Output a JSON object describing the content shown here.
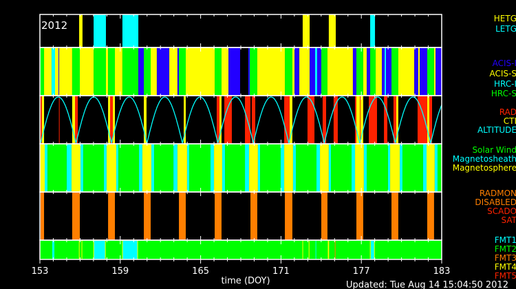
{
  "chart_data": {
    "type": "timeline",
    "title": "2012",
    "xlabel": "time (DOY)",
    "xlim": [
      153,
      183
    ],
    "xticks": [
      "153",
      "159",
      "165",
      "171",
      "177",
      "183"
    ],
    "minor_tick_step_days": 1,
    "grid": false,
    "updated": "Updated: Tue Aug 14 15:04:50 2012",
    "colors": {
      "yellow": "#ffff00",
      "cyan": "#00ffff",
      "green": "#00ff00",
      "blue": "#2200ff",
      "red": "#ff2200",
      "orange": "#ff7f00",
      "white": "#ffffff"
    },
    "panels": [
      {
        "id": "grating",
        "legend": [
          {
            "key": "HETG",
            "label": "HETG",
            "color": "#ffff00"
          },
          {
            "key": "LETG",
            "label": "LETG",
            "color": "#00ffff"
          }
        ],
        "segments": [
          [
            155.93,
            156.18,
            "HETG"
          ],
          [
            157.01,
            157.93,
            "LETG"
          ],
          [
            159.16,
            160.35,
            "LETG"
          ],
          [
            172.62,
            173.14,
            "HETG"
          ],
          [
            174.57,
            175.09,
            "HETG"
          ],
          [
            177.66,
            178.02,
            "LETG"
          ]
        ]
      },
      {
        "id": "instrument",
        "legend": [
          {
            "key": "I",
            "label": "ACIS-I",
            "color": "#2200ff"
          },
          {
            "key": "S",
            "label": "ACIS-S",
            "color": "#ffff00"
          },
          {
            "key": "HI",
            "label": "HRC-I",
            "color": "#00ffff"
          },
          {
            "key": "HS",
            "label": "HRC-S",
            "color": "#00ff00"
          }
        ],
        "segments": [
          [
            153.0,
            153.31,
            "HS"
          ],
          [
            153.31,
            153.87,
            "S"
          ],
          [
            153.87,
            154.13,
            "HI"
          ],
          [
            154.13,
            154.39,
            "S"
          ],
          [
            154.39,
            154.44,
            "I"
          ],
          [
            154.44,
            155.41,
            "S"
          ],
          [
            155.41,
            155.98,
            "HS"
          ],
          [
            155.98,
            157.01,
            "S"
          ],
          [
            157.01,
            157.93,
            "HS"
          ],
          [
            157.93,
            158.09,
            "S"
          ],
          [
            158.09,
            158.6,
            "HS"
          ],
          [
            158.6,
            159.16,
            "S"
          ],
          [
            159.16,
            160.35,
            "HS"
          ],
          [
            160.35,
            160.76,
            "I"
          ],
          [
            160.76,
            161.27,
            "HS"
          ],
          [
            161.27,
            161.73,
            "S"
          ],
          [
            161.73,
            162.66,
            "I"
          ],
          [
            162.66,
            163.27,
            "S"
          ],
          [
            163.27,
            163.38,
            "I"
          ],
          [
            163.38,
            163.89,
            "HS"
          ],
          [
            163.89,
            166.05,
            "S"
          ],
          [
            166.05,
            166.56,
            "HS"
          ],
          [
            166.56,
            167.08,
            "S"
          ],
          [
            167.08,
            167.95,
            "I"
          ],
          [
            168.56,
            168.67,
            "I"
          ],
          [
            168.67,
            169.23,
            "HS"
          ],
          [
            169.23,
            171.29,
            "S"
          ],
          [
            171.29,
            171.85,
            "HS"
          ],
          [
            171.85,
            172.01,
            "S"
          ],
          [
            172.01,
            172.37,
            "I"
          ],
          [
            172.37,
            173.14,
            "S"
          ],
          [
            173.14,
            173.55,
            "I"
          ],
          [
            173.55,
            173.7,
            "HI"
          ],
          [
            173.7,
            174.01,
            "I"
          ],
          [
            174.01,
            174.47,
            "HS"
          ],
          [
            174.47,
            176.37,
            "S"
          ],
          [
            176.37,
            176.63,
            "I"
          ],
          [
            176.63,
            177.14,
            "HS"
          ],
          [
            177.14,
            177.4,
            "S"
          ],
          [
            177.4,
            177.66,
            "I"
          ],
          [
            177.66,
            178.07,
            "HS"
          ],
          [
            178.07,
            178.53,
            "S"
          ],
          [
            178.53,
            178.74,
            "I"
          ],
          [
            178.74,
            178.84,
            "HI"
          ],
          [
            178.84,
            179.25,
            "I"
          ],
          [
            179.25,
            179.76,
            "HS"
          ],
          [
            179.76,
            180.95,
            "S"
          ],
          [
            180.95,
            181.25,
            "I"
          ],
          [
            181.25,
            181.36,
            "S"
          ],
          [
            181.36,
            181.92,
            "I"
          ],
          [
            181.92,
            182.43,
            "HS"
          ],
          [
            182.43,
            182.54,
            "S"
          ],
          [
            182.54,
            183.0,
            "I"
          ]
        ]
      },
      {
        "id": "radiation",
        "legend": [
          {
            "key": "RAD",
            "label": "RAD",
            "color": "#ff2200"
          },
          {
            "key": "CTI",
            "label": "CTI",
            "color": "#ffff00"
          },
          {
            "key": "ALT",
            "label": "ALTITUDE",
            "color": "#00ffff"
          }
        ],
        "segments": [
          [
            153.0,
            153.15,
            "RAD"
          ],
          [
            153.15,
            153.31,
            "CTI"
          ],
          [
            154.42,
            154.47,
            "RAD"
          ],
          [
            155.41,
            155.62,
            "CTI"
          ],
          [
            155.62,
            155.83,
            "RAD"
          ],
          [
            158.09,
            158.24,
            "CTI"
          ],
          [
            158.24,
            158.45,
            "RAD"
          ],
          [
            158.45,
            158.6,
            "CTI"
          ],
          [
            160.76,
            160.96,
            "CTI"
          ],
          [
            163.74,
            163.89,
            "CTI"
          ],
          [
            166.2,
            166.41,
            "RAD"
          ],
          [
            166.41,
            166.56,
            "CTI"
          ],
          [
            166.77,
            167.33,
            "RAD"
          ],
          [
            168.31,
            168.72,
            "RAD"
          ],
          [
            168.82,
            169.08,
            "RAD"
          ],
          [
            171.24,
            171.65,
            "RAD"
          ],
          [
            171.65,
            171.85,
            "CTI"
          ],
          [
            172.98,
            173.5,
            "RAD"
          ],
          [
            174.11,
            174.37,
            "RAD"
          ],
          [
            174.93,
            175.24,
            "RAD"
          ],
          [
            176.53,
            176.63,
            "RAD"
          ],
          [
            176.63,
            176.89,
            "CTI"
          ],
          [
            176.89,
            176.94,
            "RAD"
          ],
          [
            176.94,
            177.14,
            "CTI"
          ],
          [
            177.56,
            178.17,
            "RAD"
          ],
          [
            178.69,
            178.94,
            "RAD"
          ],
          [
            179.4,
            179.61,
            "RAD"
          ],
          [
            179.61,
            179.76,
            "CTI"
          ],
          [
            181.2,
            181.92,
            "RAD"
          ],
          [
            181.92,
            182.08,
            "CTI"
          ],
          [
            182.08,
            182.28,
            "RAD"
          ]
        ],
        "altitude": {
          "first_perigee_doy": 153.05,
          "period_days": 2.648
        }
      },
      {
        "id": "region",
        "legend": [
          {
            "key": "SW",
            "label": "Solar Wind",
            "color": "#00ff00"
          },
          {
            "key": "MS",
            "label": "Magnetosheath",
            "color": "#00ffff"
          },
          {
            "key": "MP",
            "label": "Magnetosphere",
            "color": "#ffff00"
          }
        ],
        "segments": [
          [
            153.0,
            153.36,
            "MP"
          ],
          [
            153.36,
            153.57,
            "MS"
          ],
          [
            153.57,
            155.0,
            "SW"
          ],
          [
            155.0,
            155.36,
            "MS"
          ],
          [
            155.36,
            156.03,
            "MP"
          ],
          [
            156.03,
            156.24,
            "MS"
          ],
          [
            156.24,
            157.78,
            "SW"
          ],
          [
            157.78,
            157.98,
            "MS"
          ],
          [
            157.98,
            158.7,
            "MP"
          ],
          [
            158.7,
            158.86,
            "MS"
          ],
          [
            158.86,
            160.4,
            "SW"
          ],
          [
            160.4,
            160.65,
            "MS"
          ],
          [
            160.65,
            161.32,
            "MP"
          ],
          [
            161.32,
            161.53,
            "MS"
          ],
          [
            161.53,
            162.97,
            "SW"
          ],
          [
            162.97,
            163.27,
            "MS"
          ],
          [
            163.27,
            163.99,
            "MP"
          ],
          [
            163.99,
            164.15,
            "MS"
          ],
          [
            164.15,
            165.74,
            "SW"
          ],
          [
            165.74,
            166.0,
            "MS"
          ],
          [
            166.0,
            166.61,
            "MP"
          ],
          [
            166.61,
            166.82,
            "MS"
          ],
          [
            166.82,
            168.31,
            "SW"
          ],
          [
            168.31,
            168.62,
            "MS"
          ],
          [
            168.62,
            169.28,
            "MP"
          ],
          [
            169.28,
            169.44,
            "MS"
          ],
          [
            169.44,
            170.98,
            "SW"
          ],
          [
            170.98,
            171.24,
            "MS"
          ],
          [
            171.24,
            171.9,
            "MP"
          ],
          [
            171.9,
            172.11,
            "MS"
          ],
          [
            172.11,
            173.65,
            "SW"
          ],
          [
            173.65,
            173.91,
            "MS"
          ],
          [
            173.91,
            174.57,
            "MP"
          ],
          [
            174.57,
            174.73,
            "MS"
          ],
          [
            174.73,
            176.27,
            "SW"
          ],
          [
            176.27,
            176.53,
            "MS"
          ],
          [
            176.53,
            177.19,
            "MP"
          ],
          [
            177.19,
            177.4,
            "MS"
          ],
          [
            177.4,
            178.99,
            "SW"
          ],
          [
            178.99,
            179.15,
            "MS"
          ],
          [
            179.15,
            179.87,
            "MP"
          ],
          [
            179.87,
            180.07,
            "MS"
          ],
          [
            180.07,
            181.61,
            "SW"
          ],
          [
            181.61,
            181.87,
            "MS"
          ],
          [
            181.87,
            182.48,
            "MP"
          ],
          [
            182.48,
            182.69,
            "MS"
          ],
          [
            182.69,
            183.0,
            "SW"
          ]
        ]
      },
      {
        "id": "radmon",
        "legend": [
          {
            "key": "RADMON",
            "label": "RADMON",
            "color": "#ff7f00"
          },
          {
            "key": "DIS",
            "label": "DISABLED",
            "color": "#ff7f00"
          },
          {
            "key": "SCADO",
            "label": "SCADO",
            "color": "#ff2200"
          },
          {
            "key": "SAT",
            "label": "SAT",
            "color": "#ff2200"
          }
        ],
        "segments": [
          [
            153.05,
            153.31,
            "DIS"
          ],
          [
            155.41,
            155.98,
            "DIS"
          ],
          [
            158.09,
            158.6,
            "DIS"
          ],
          [
            160.76,
            161.27,
            "DIS"
          ],
          [
            163.38,
            163.89,
            "DIS"
          ],
          [
            166.05,
            166.56,
            "DIS"
          ],
          [
            168.72,
            169.23,
            "DIS"
          ],
          [
            171.29,
            171.85,
            "DIS"
          ],
          [
            174.01,
            174.47,
            "DIS"
          ],
          [
            176.63,
            177.14,
            "DIS"
          ],
          [
            179.25,
            179.76,
            "DIS"
          ],
          [
            181.92,
            182.43,
            "DIS"
          ]
        ]
      },
      {
        "id": "format",
        "legend": [
          {
            "key": "F1",
            "label": "FMT1",
            "color": "#00ffff"
          },
          {
            "key": "F2",
            "label": "FMT2",
            "color": "#00ff00"
          },
          {
            "key": "F3",
            "label": "FMT3",
            "color": "#ff7f00"
          },
          {
            "key": "F4",
            "label": "FMT4",
            "color": "#ffff00"
          },
          {
            "key": "F5",
            "label": "FMT5",
            "color": "#ff2200"
          }
        ],
        "segments": [
          [
            153.0,
            183.0,
            "F2"
          ],
          [
            153.92,
            154.08,
            "F1"
          ],
          [
            155.91,
            155.96,
            "F4"
          ],
          [
            156.11,
            156.16,
            "F4"
          ],
          [
            157.01,
            157.88,
            "F1"
          ],
          [
            156.99,
            157.04,
            "F4"
          ],
          [
            157.86,
            157.91,
            "F4"
          ],
          [
            159.16,
            160.29,
            "F1"
          ],
          [
            159.14,
            159.19,
            "F4"
          ],
          [
            160.27,
            160.32,
            "F4"
          ],
          [
            172.6,
            172.65,
            "F4"
          ],
          [
            173.07,
            173.12,
            "F4"
          ],
          [
            173.58,
            173.62,
            "F1"
          ],
          [
            174.5,
            174.59,
            "F4"
          ],
          [
            175.02,
            175.06,
            "F3"
          ],
          [
            177.71,
            177.97,
            "F1"
          ],
          [
            177.64,
            177.69,
            "F4"
          ],
          [
            177.95,
            178.0,
            "F4"
          ]
        ]
      }
    ]
  }
}
